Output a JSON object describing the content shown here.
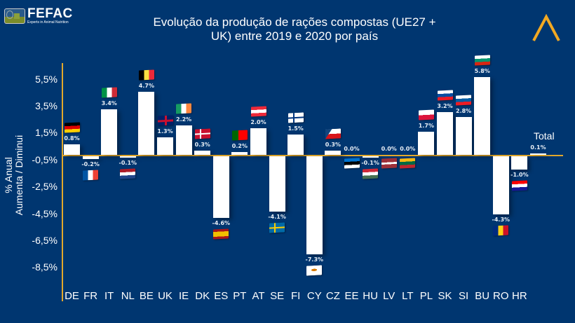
{
  "header": {
    "logo_name": "FEFAC",
    "logo_tagline": "Experts in Animal Nutrition",
    "title_line1": "Evolução da produção de rações compostas (UE27 +",
    "title_line2": "UK) entre 2019 e 2020 por país",
    "brand_icon": "chevron-up-icon",
    "brand_color": "#f2a922"
  },
  "colors": {
    "background": "#003670",
    "bar": "#ffffff",
    "axis": "#e3a82b",
    "text": "#ffffff"
  },
  "chart_data": {
    "type": "bar",
    "title": "Evolução da produção de rações compostas (UE27 + UK) entre 2019 e 2020 por país",
    "xlabel": "",
    "ylabel": "% Anual Aumenta / Diminui",
    "ylabel_line1": "% Anual",
    "ylabel_line2": "Aumenta / Diminui",
    "ylim": [
      -9.0,
      6.5
    ],
    "yticks": [
      "5,5%",
      "3,5%",
      "1,5%",
      "-0,5%",
      "-2,5%",
      "-4,5%",
      "-6,5%",
      "-8,5%"
    ],
    "ytick_values": [
      5.5,
      3.5,
      1.5,
      -0.5,
      -2.5,
      -4.5,
      -6.5,
      -8.5
    ],
    "grid": false,
    "legend": "none",
    "categories": [
      "DE",
      "FR",
      "IT",
      "NL",
      "BE",
      "UK",
      "IE",
      "DK",
      "ES",
      "PT",
      "AT",
      "SE",
      "FI",
      "CY",
      "CZ",
      "EE",
      "HU",
      "LV",
      "LT",
      "PL",
      "SK",
      "SI",
      "BU",
      "RO",
      "HR",
      "Total"
    ],
    "values": [
      0.8,
      -0.2,
      3.4,
      -0.1,
      4.7,
      1.3,
      2.2,
      0.3,
      -4.6,
      0.2,
      2.0,
      -4.1,
      1.5,
      -7.3,
      0.3,
      0.0,
      -0.1,
      0.0,
      0.0,
      1.7,
      3.2,
      2.8,
      5.8,
      -4.3,
      -1.0,
      0.1
    ],
    "data_labels": [
      "0.8%",
      "-0.2%",
      "3.4%",
      "-0.1%",
      "4.7%",
      "1.3%",
      "2.2%",
      "0.3%",
      "-4.6%",
      "0.2%",
      "2.0%",
      "-4.1%",
      "1.5%",
      "-7.3%",
      "0.3%",
      "0.0%",
      "-0.1%",
      "0.0%",
      "0.0%",
      "1.7%",
      "3.2%",
      "2.8%",
      "5.8%",
      "-4.3%",
      "-1.0%",
      "0.1%"
    ],
    "annotations": [
      "Total"
    ],
    "flags": [
      "germany-flag",
      "france-flag",
      "italy-flag",
      "netherlands-flag",
      "belgium-flag",
      "uk-flag",
      "ireland-flag",
      "denmark-flag",
      "spain-flag",
      "portugal-flag",
      "austria-flag",
      "sweden-flag",
      "finland-flag",
      "cyprus-flag",
      "czechia-flag",
      "estonia-flag",
      "hungary-flag",
      "latvia-flag",
      "lithuania-flag",
      "poland-flag",
      "slovakia-flag",
      "slovenia-flag",
      "bulgaria-flag",
      "romania-flag",
      "croatia-flag",
      ""
    ]
  }
}
